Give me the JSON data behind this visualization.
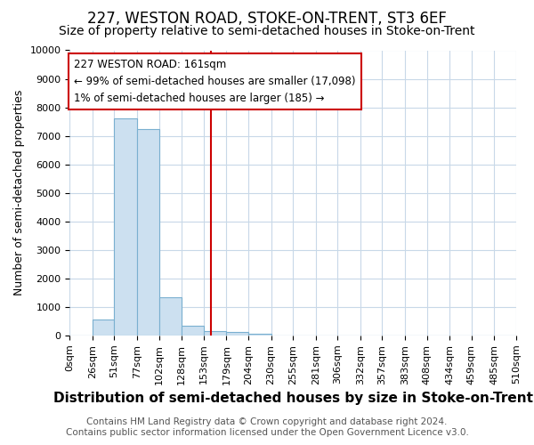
{
  "title": "227, WESTON ROAD, STOKE-ON-TRENT, ST3 6EF",
  "subtitle": "Size of property relative to semi-detached houses in Stoke-on-Trent",
  "xlabel": "Distribution of semi-detached houses by size in Stoke-on-Trent",
  "ylabel": "Number of semi-detached properties",
  "footer1": "Contains HM Land Registry data © Crown copyright and database right 2024.",
  "footer2": "Contains public sector information licensed under the Open Government Licence v3.0.",
  "bin_edges": [
    0,
    26,
    51,
    77,
    102,
    128,
    153,
    179,
    204,
    230,
    255,
    281,
    306,
    332,
    357,
    383,
    408,
    434,
    459,
    485,
    510
  ],
  "bin_labels": [
    "0sqm",
    "26sqm",
    "51sqm",
    "77sqm",
    "102sqm",
    "128sqm",
    "153sqm",
    "179sqm",
    "204sqm",
    "230sqm",
    "255sqm",
    "281sqm",
    "306sqm",
    "332sqm",
    "357sqm",
    "383sqm",
    "408sqm",
    "434sqm",
    "459sqm",
    "485sqm",
    "510sqm"
  ],
  "counts": [
    0,
    560,
    7600,
    7250,
    1350,
    340,
    150,
    130,
    75,
    0,
    0,
    0,
    0,
    0,
    0,
    0,
    0,
    0,
    0,
    0
  ],
  "bar_color": "#cce0f0",
  "bar_edge_color": "#7ab0d0",
  "vline_x": 161,
  "vline_color": "#cc0000",
  "annotation_line1": "227 WESTON ROAD: 161sqm",
  "annotation_line2": "← 99% of semi-detached houses are smaller (17,098)",
  "annotation_line3": "1% of semi-detached houses are larger (185) →",
  "annotation_box_color": "#ffffff",
  "annotation_box_edgecolor": "#cc0000",
  "ylim": [
    0,
    10000
  ],
  "yticks": [
    0,
    1000,
    2000,
    3000,
    4000,
    5000,
    6000,
    7000,
    8000,
    9000,
    10000
  ],
  "background_color": "#ffffff",
  "grid_color": "#c8d8e8",
  "title_fontsize": 12,
  "subtitle_fontsize": 10,
  "xlabel_fontsize": 11,
  "ylabel_fontsize": 9,
  "tick_fontsize": 8,
  "annotation_fontsize": 8.5,
  "footer_fontsize": 7.5
}
